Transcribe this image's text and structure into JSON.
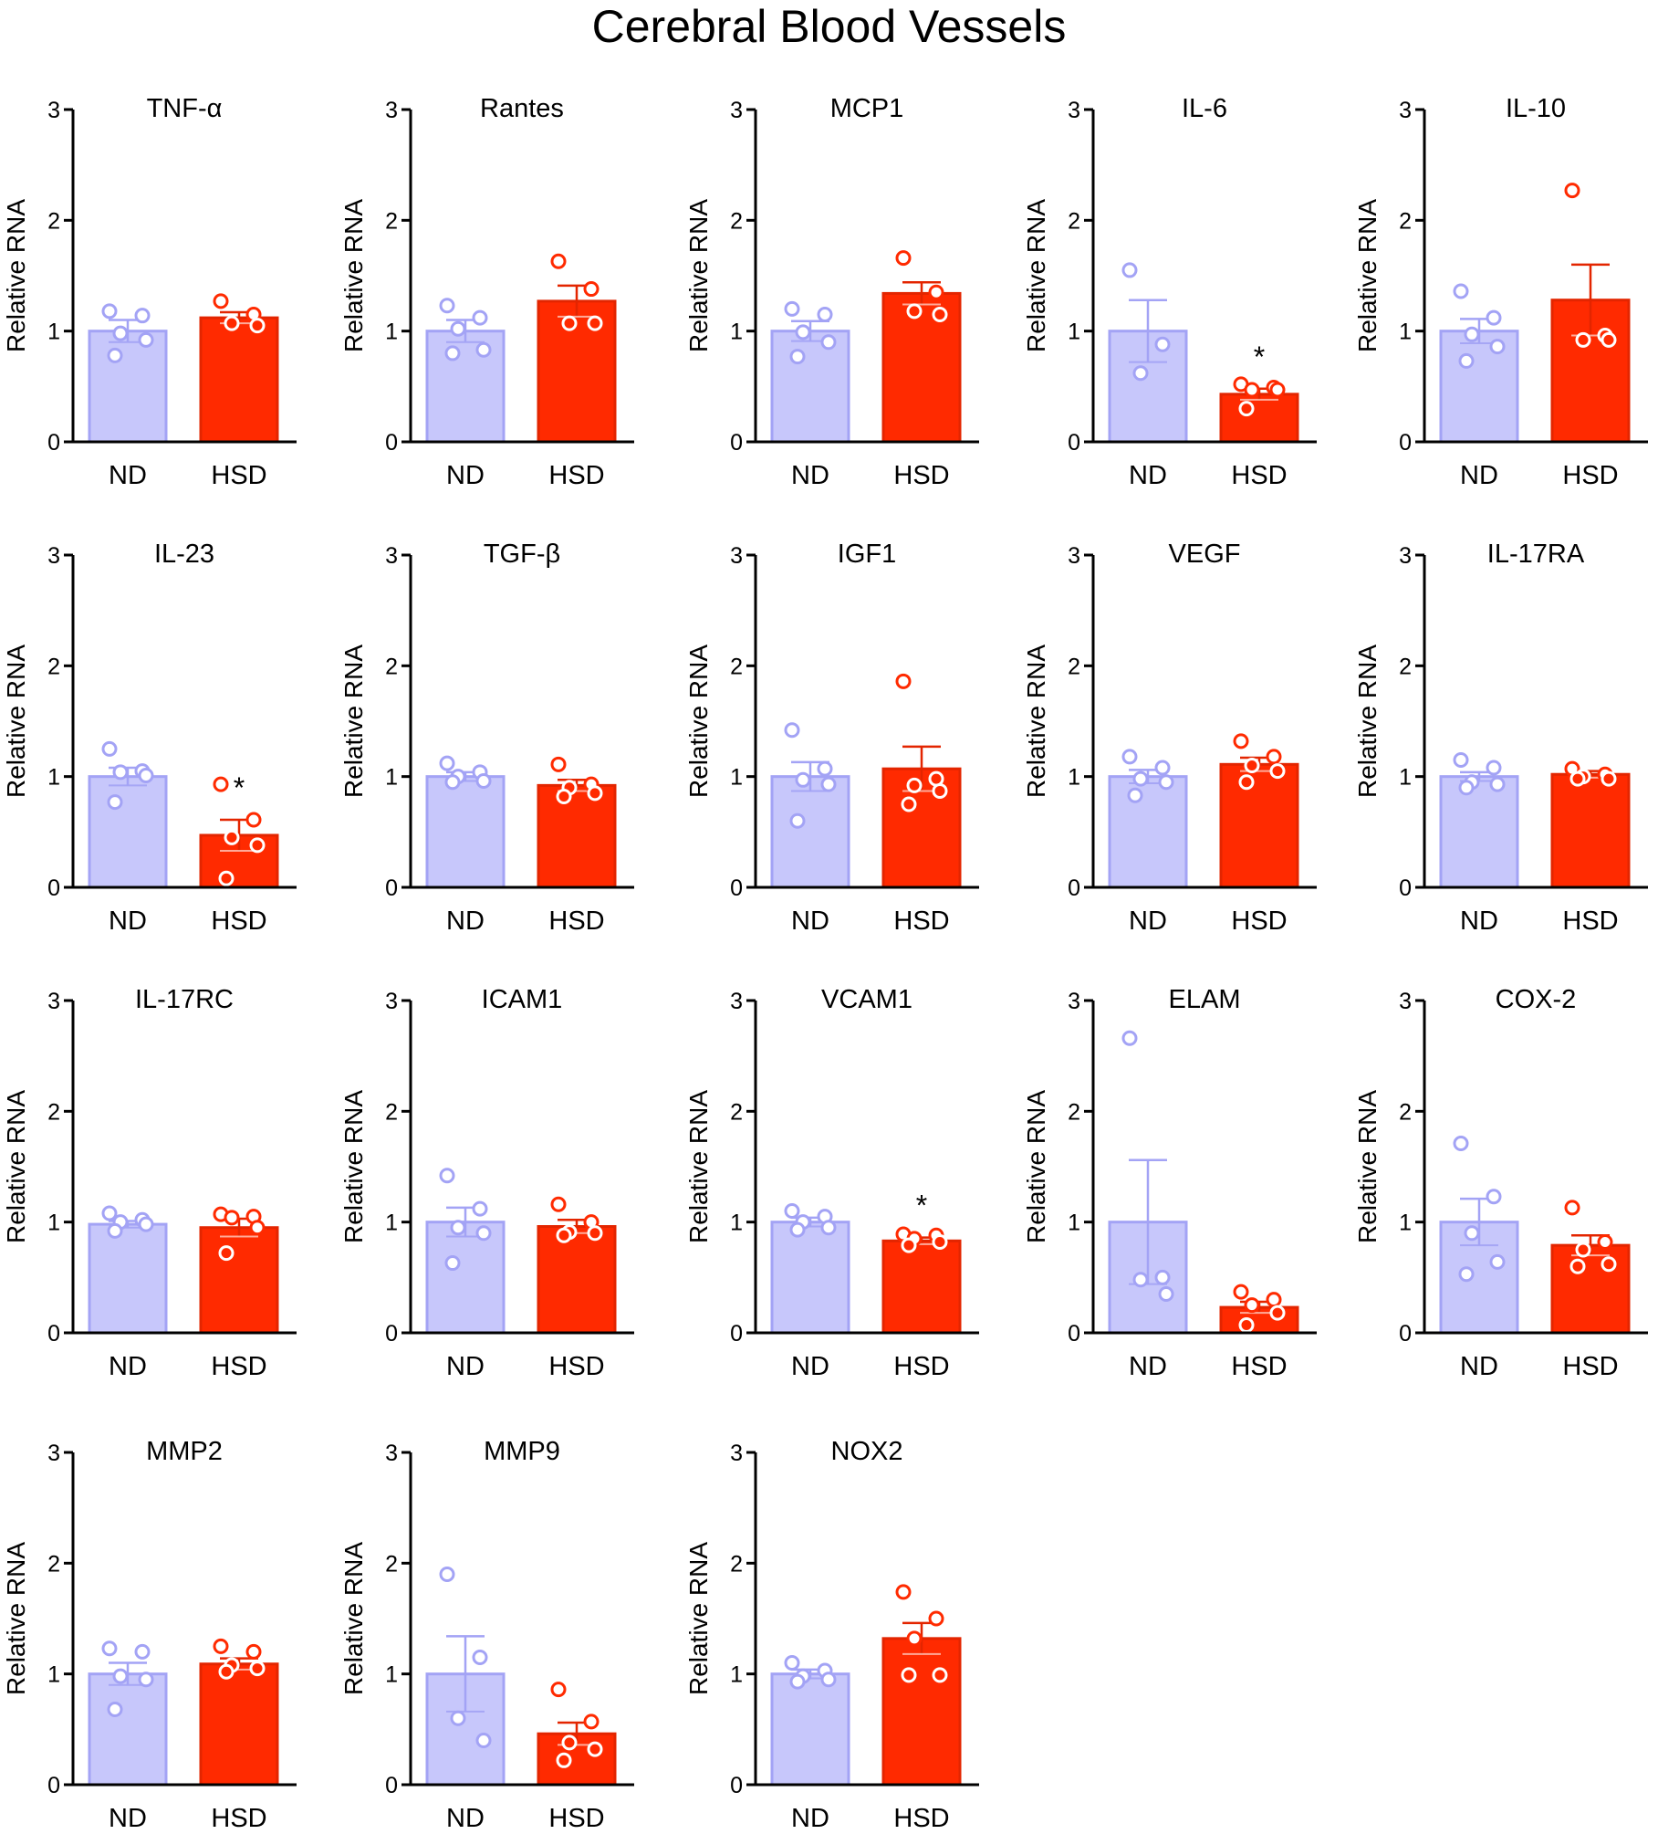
{
  "figure": {
    "title": "Cerebral Blood Vessels"
  },
  "colors": {
    "nd_fill": "#c7c7fb",
    "nd_stroke": "#a3a3f5",
    "hsd_fill": "#ff2a00",
    "hsd_stroke": "#e32500",
    "axis": "#000000"
  },
  "chart_data": [
    {
      "type": "bar",
      "title": "TNF-α",
      "xlabel": "",
      "ylabel": "Relative RNA",
      "ylim": [
        0,
        3
      ],
      "yticks": [
        "0",
        "1",
        "2",
        "3"
      ],
      "categories": [
        "ND",
        "HSD"
      ],
      "values": [
        1.0,
        1.12
      ],
      "sem": [
        0.1,
        0.05
      ],
      "points": [
        [
          1.18,
          1.14,
          0.98,
          0.92,
          0.78
        ],
        [
          1.27,
          1.15,
          1.07,
          1.05
        ]
      ],
      "significance": [
        "",
        ""
      ]
    },
    {
      "type": "bar",
      "title": "Rantes",
      "xlabel": "",
      "ylabel": "Relative RNA",
      "ylim": [
        0,
        3
      ],
      "yticks": [
        "0",
        "1",
        "2",
        "3"
      ],
      "categories": [
        "ND",
        "HSD"
      ],
      "values": [
        1.0,
        1.27
      ],
      "sem": [
        0.1,
        0.14
      ],
      "points": [
        [
          1.23,
          1.12,
          1.02,
          0.83,
          0.8
        ],
        [
          1.63,
          1.38,
          1.07,
          1.07
        ]
      ],
      "significance": [
        "",
        ""
      ]
    },
    {
      "type": "bar",
      "title": "MCP1",
      "xlabel": "",
      "ylabel": "Relative RNA",
      "ylim": [
        0,
        3
      ],
      "yticks": [
        "0",
        "1",
        "2",
        "3"
      ],
      "categories": [
        "ND",
        "HSD"
      ],
      "values": [
        1.0,
        1.34
      ],
      "sem": [
        0.09,
        0.1
      ],
      "points": [
        [
          1.2,
          1.15,
          0.99,
          0.9,
          0.77
        ],
        [
          1.66,
          1.35,
          1.18,
          1.15
        ]
      ],
      "significance": [
        "",
        ""
      ]
    },
    {
      "type": "bar",
      "title": "IL-6",
      "xlabel": "",
      "ylabel": "Relative RNA",
      "ylim": [
        0,
        3
      ],
      "yticks": [
        "0",
        "1",
        "2",
        "3"
      ],
      "categories": [
        "ND",
        "HSD"
      ],
      "values": [
        1.0,
        0.43
      ],
      "sem": [
        0.28,
        0.05
      ],
      "points": [
        [
          1.55,
          0.88,
          0.62
        ],
        [
          0.52,
          0.49,
          0.47,
          0.47,
          0.3
        ]
      ],
      "significance": [
        "",
        "*"
      ]
    },
    {
      "type": "bar",
      "title": "IL-10",
      "xlabel": "",
      "ylabel": "Relative RNA",
      "ylim": [
        0,
        3
      ],
      "yticks": [
        "0",
        "1",
        "2",
        "3"
      ],
      "categories": [
        "ND",
        "HSD"
      ],
      "values": [
        1.0,
        1.28
      ],
      "sem": [
        0.11,
        0.32
      ],
      "points": [
        [
          1.36,
          1.12,
          0.97,
          0.86,
          0.73
        ],
        [
          2.27,
          0.96,
          0.92,
          0.92
        ]
      ],
      "significance": [
        "",
        ""
      ]
    },
    {
      "type": "bar",
      "title": "IL-23",
      "xlabel": "",
      "ylabel": "Relative RNA",
      "ylim": [
        0,
        3
      ],
      "yticks": [
        "0",
        "1",
        "2",
        "3"
      ],
      "categories": [
        "ND",
        "HSD"
      ],
      "values": [
        1.0,
        0.47
      ],
      "sem": [
        0.08,
        0.14
      ],
      "points": [
        [
          1.25,
          1.05,
          1.04,
          1.01,
          0.77
        ],
        [
          0.93,
          0.61,
          0.45,
          0.38,
          0.08
        ]
      ],
      "significance": [
        "",
        "*"
      ]
    },
    {
      "type": "bar",
      "title": "TGF-β",
      "xlabel": "",
      "ylabel": "Relative RNA",
      "ylim": [
        0,
        3
      ],
      "yticks": [
        "0",
        "1",
        "2",
        "3"
      ],
      "categories": [
        "ND",
        "HSD"
      ],
      "values": [
        1.0,
        0.92
      ],
      "sem": [
        0.04,
        0.05
      ],
      "points": [
        [
          1.12,
          1.04,
          1.0,
          0.96,
          0.95
        ],
        [
          1.11,
          0.93,
          0.9,
          0.85,
          0.82
        ]
      ],
      "significance": [
        "",
        ""
      ]
    },
    {
      "type": "bar",
      "title": "IGF1",
      "xlabel": "",
      "ylabel": "Relative RNA",
      "ylim": [
        0,
        3
      ],
      "yticks": [
        "0",
        "1",
        "2",
        "3"
      ],
      "categories": [
        "ND",
        "HSD"
      ],
      "values": [
        1.0,
        1.07
      ],
      "sem": [
        0.13,
        0.2
      ],
      "points": [
        [
          1.42,
          1.07,
          0.97,
          0.93,
          0.6
        ],
        [
          1.86,
          0.98,
          0.92,
          0.87,
          0.75
        ]
      ],
      "significance": [
        "",
        ""
      ]
    },
    {
      "type": "bar",
      "title": "VEGF",
      "xlabel": "",
      "ylabel": "Relative RNA",
      "ylim": [
        0,
        3
      ],
      "yticks": [
        "0",
        "1",
        "2",
        "3"
      ],
      "categories": [
        "ND",
        "HSD"
      ],
      "values": [
        1.0,
        1.11
      ],
      "sem": [
        0.06,
        0.06
      ],
      "points": [
        [
          1.18,
          1.08,
          0.98,
          0.95,
          0.83
        ],
        [
          1.32,
          1.18,
          1.1,
          1.05,
          0.95
        ]
      ],
      "significance": [
        "",
        ""
      ]
    },
    {
      "type": "bar",
      "title": "IL-17RA",
      "xlabel": "",
      "ylabel": "Relative RNA",
      "ylim": [
        0,
        3
      ],
      "yticks": [
        "0",
        "1",
        "2",
        "3"
      ],
      "categories": [
        "ND",
        "HSD"
      ],
      "values": [
        1.0,
        1.02
      ],
      "sem": [
        0.04,
        0.03
      ],
      "points": [
        [
          1.15,
          1.08,
          0.95,
          0.93,
          0.9
        ],
        [
          1.07,
          1.02,
          1.0,
          0.98,
          0.98
        ]
      ],
      "significance": [
        "",
        ""
      ]
    },
    {
      "type": "bar",
      "title": "IL-17RC",
      "xlabel": "",
      "ylabel": "Relative RNA",
      "ylim": [
        0,
        3
      ],
      "yticks": [
        "0",
        "1",
        "2",
        "3"
      ],
      "categories": [
        "ND",
        "HSD"
      ],
      "values": [
        0.98,
        0.95
      ],
      "sem": [
        0.03,
        0.08
      ],
      "points": [
        [
          1.08,
          1.02,
          1.0,
          0.98,
          0.92
        ],
        [
          1.07,
          1.05,
          1.04,
          0.95,
          0.72
        ]
      ],
      "significance": [
        "",
        ""
      ]
    },
    {
      "type": "bar",
      "title": "ICAM1",
      "xlabel": "",
      "ylabel": "Relative RNA",
      "ylim": [
        0,
        3
      ],
      "yticks": [
        "0",
        "1",
        "2",
        "3"
      ],
      "categories": [
        "ND",
        "HSD"
      ],
      "values": [
        1.0,
        0.96
      ],
      "sem": [
        0.13,
        0.06
      ],
      "points": [
        [
          1.42,
          1.12,
          0.95,
          0.9,
          0.63
        ],
        [
          1.16,
          1.0,
          0.91,
          0.9,
          0.88
        ]
      ],
      "significance": [
        "",
        ""
      ]
    },
    {
      "type": "bar",
      "title": "VCAM1",
      "xlabel": "",
      "ylabel": "Relative RNA",
      "ylim": [
        0,
        3
      ],
      "yticks": [
        "0",
        "1",
        "2",
        "3"
      ],
      "categories": [
        "ND",
        "HSD"
      ],
      "values": [
        1.0,
        0.83
      ],
      "sem": [
        0.04,
        0.03
      ],
      "points": [
        [
          1.1,
          1.05,
          1.0,
          0.95,
          0.93
        ],
        [
          0.89,
          0.88,
          0.85,
          0.82,
          0.79
        ]
      ],
      "significance": [
        "",
        "*"
      ]
    },
    {
      "type": "bar",
      "title": "ELAM",
      "xlabel": "",
      "ylabel": "Relative RNA",
      "ylim": [
        0,
        3
      ],
      "yticks": [
        "0",
        "1",
        "2",
        "3"
      ],
      "categories": [
        "ND",
        "HSD"
      ],
      "values": [
        1.0,
        0.23
      ],
      "sem": [
        0.56,
        0.05
      ],
      "points": [
        [
          2.66,
          0.5,
          0.48,
          0.35
        ],
        [
          0.37,
          0.3,
          0.25,
          0.18,
          0.07
        ]
      ],
      "significance": [
        "",
        ""
      ]
    },
    {
      "type": "bar",
      "title": "COX-2",
      "xlabel": "",
      "ylabel": "Relative RNA",
      "ylim": [
        0,
        3
      ],
      "yticks": [
        "0",
        "1",
        "2",
        "3"
      ],
      "categories": [
        "ND",
        "HSD"
      ],
      "values": [
        1.0,
        0.79
      ],
      "sem": [
        0.21,
        0.09
      ],
      "points": [
        [
          1.71,
          1.23,
          0.9,
          0.64,
          0.53
        ],
        [
          1.13,
          0.82,
          0.75,
          0.62,
          0.6
        ]
      ],
      "significance": [
        "",
        ""
      ]
    },
    {
      "type": "bar",
      "title": "MMP2",
      "xlabel": "",
      "ylabel": "Relative RNA",
      "ylim": [
        0,
        3
      ],
      "yticks": [
        "0",
        "1",
        "2",
        "3"
      ],
      "categories": [
        "ND",
        "HSD"
      ],
      "values": [
        1.0,
        1.09
      ],
      "sem": [
        0.1,
        0.05
      ],
      "points": [
        [
          1.23,
          1.2,
          0.98,
          0.95,
          0.68
        ],
        [
          1.25,
          1.2,
          1.08,
          1.05,
          1.02
        ]
      ],
      "significance": [
        "",
        ""
      ]
    },
    {
      "type": "bar",
      "title": "MMP9",
      "xlabel": "",
      "ylabel": "Relative RNA",
      "ylim": [
        0,
        3
      ],
      "yticks": [
        "0",
        "1",
        "2",
        "3"
      ],
      "categories": [
        "ND",
        "HSD"
      ],
      "values": [
        1.0,
        0.46
      ],
      "sem": [
        0.34,
        0.1
      ],
      "points": [
        [
          1.9,
          1.15,
          0.6,
          0.4
        ],
        [
          0.86,
          0.57,
          0.38,
          0.32,
          0.22
        ]
      ],
      "significance": [
        "",
        ""
      ]
    },
    {
      "type": "bar",
      "title": "NOX2",
      "xlabel": "",
      "ylabel": "Relative RNA",
      "ylim": [
        0,
        3
      ],
      "yticks": [
        "0",
        "1",
        "2",
        "3"
      ],
      "categories": [
        "ND",
        "HSD"
      ],
      "values": [
        1.0,
        1.32
      ],
      "sem": [
        0.04,
        0.14
      ],
      "points": [
        [
          1.1,
          1.03,
          0.98,
          0.95,
          0.93
        ],
        [
          1.74,
          1.5,
          1.32,
          0.99,
          0.99
        ]
      ],
      "significance": [
        "",
        ""
      ]
    }
  ]
}
